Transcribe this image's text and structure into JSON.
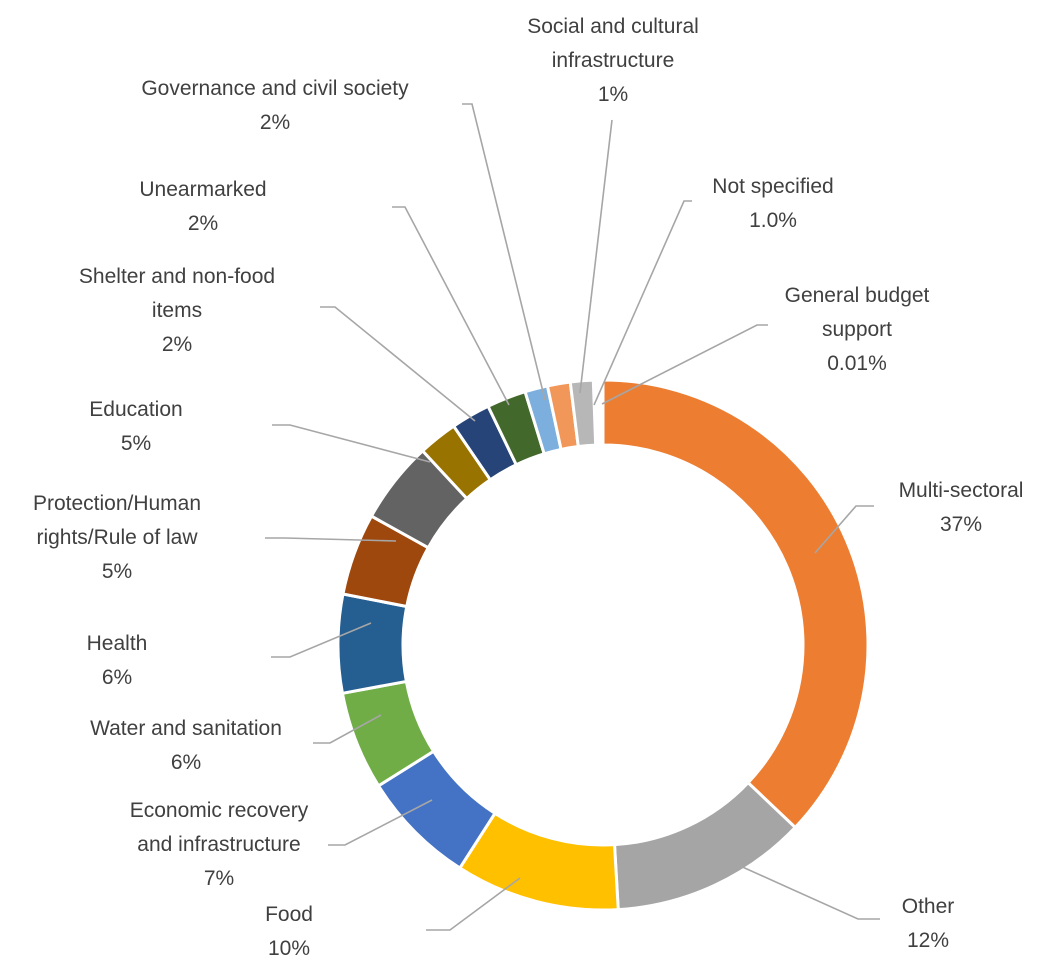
{
  "chart_data": {
    "type": "pie",
    "variant": "donut",
    "legend": "none",
    "slices": [
      {
        "label": [
          "Multi-sectoral"
        ],
        "value_label": "37%",
        "value": 37,
        "color": "#ed7d31"
      },
      {
        "label": [
          "Other"
        ],
        "value_label": "12%",
        "value": 12,
        "color": "#a5a5a5"
      },
      {
        "label": [
          "Food"
        ],
        "value_label": "10%",
        "value": 10,
        "color": "#ffc000"
      },
      {
        "label": [
          "Economic recovery",
          "and infrastructure"
        ],
        "value_label": "7%",
        "value": 7,
        "color": "#4472c4"
      },
      {
        "label": [
          "Water and sanitation"
        ],
        "value_label": "6%",
        "value": 6,
        "color": "#70ad47"
      },
      {
        "label": [
          "Health"
        ],
        "value_label": "6%",
        "value": 6,
        "color": "#255e91"
      },
      {
        "label": [
          "Protection/Human",
          "rights/Rule of law"
        ],
        "value_label": "5%",
        "value": 5,
        "color": "#9e480e"
      },
      {
        "label": [
          "Education"
        ],
        "value_label": "5%",
        "value": 5,
        "color": "#636363"
      },
      {
        "label": [
          "Shelter and non-food",
          "items"
        ],
        "value_label": "2%",
        "value": 2,
        "color": "#997300"
      },
      {
        "label": [
          "Unearmarked"
        ],
        "value_label": "2%",
        "value": 2,
        "color": "#264478"
      },
      {
        "label": [
          "Governance and civil society"
        ],
        "value_label": "2%",
        "value": 2,
        "color": "#43682b"
      },
      {
        "label": [
          "Social and cultural",
          "infrastructure"
        ],
        "value_label": "1%",
        "value": 1,
        "color": "#7cafdd"
      },
      {
        "label": [
          "Not specified"
        ],
        "value_label": "1.0%",
        "value": 1.0,
        "color": "#f1975a"
      },
      {
        "label": [
          "General budget",
          "support"
        ],
        "value_label": "0.01%",
        "value": 0.01,
        "color": "#b7b7b7"
      }
    ]
  }
}
